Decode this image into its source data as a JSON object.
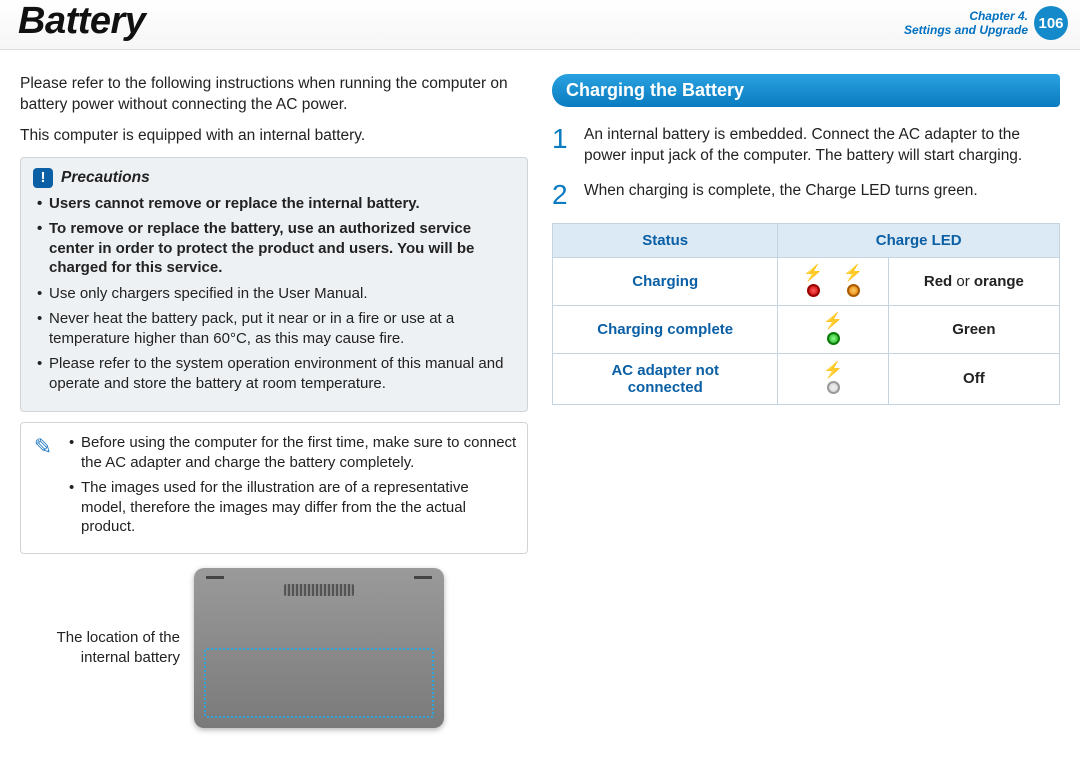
{
  "header": {
    "title": "Battery",
    "chapter_line1": "Chapter 4.",
    "chapter_line2": "Settings and Upgrade",
    "page_number": "106"
  },
  "left": {
    "intro1": "Please refer to the following instructions when running the computer on battery power without connecting the AC power.",
    "intro2": "This computer is equipped with an internal battery.",
    "precautions_title": "Precautions",
    "prec_items": {
      "b1": "Users cannot remove or replace the internal battery.",
      "b2": "To remove or replace the battery, use an authorized service center in order to protect the product and users. You will be charged for this service.",
      "p3": "Use only chargers specified in the User Manual.",
      "p4": "Never heat the battery pack, put it near or in a fire or use at a temperature higher than 60°C, as this may cause fire.",
      "p5": "Please refer to the system operation environment of this manual and operate and store the battery at room temperature."
    },
    "note_items": {
      "n1": "Before using the computer for the first time, make sure to connect the AC adapter and charge the battery completely.",
      "n2": "The images used for the illustration are of a representative model, therefore the images may differ from the the actual product."
    },
    "figure_caption": "The location of the internal battery"
  },
  "right": {
    "section_title": "Charging the Battery",
    "steps": {
      "s1": "An internal battery is embedded. Connect the AC adapter to the power input jack of the computer. The battery will start charging.",
      "s2": "When charging is complete, the Charge LED turns green."
    },
    "table": {
      "head_status": "Status",
      "head_led": "Charge LED",
      "row1_status": "Charging",
      "row1_led_pre": "Red",
      "row1_led_mid": " or ",
      "row1_led_post": "orange",
      "row2_status": "Charging complete",
      "row2_led": "Green",
      "row3_status_l1": "AC adapter not",
      "row3_status_l2": "connected",
      "row3_led": "Off"
    }
  },
  "colors": {
    "brand_blue": "#0a7bc0",
    "header_blue": "#158acb"
  }
}
